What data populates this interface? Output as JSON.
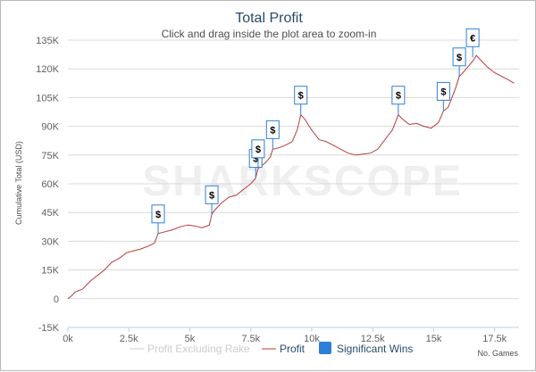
{
  "chart_data": {
    "type": "line",
    "title": "Total Profit",
    "subtitle": "Click and drag inside the plot area to zoom-in",
    "ylabel": "Cumulative Total (USD)",
    "xlabel": "No. Games",
    "xlim": [
      0,
      18500
    ],
    "ylim": [
      -15000,
      135000
    ],
    "x_ticks": [
      0,
      2500,
      5000,
      7500,
      10000,
      12500,
      15000,
      17500
    ],
    "x_tick_labels": [
      "0k",
      "2.5k",
      "5k",
      "7.5k",
      "10k",
      "12.5k",
      "15k",
      "17.5k"
    ],
    "y_ticks": [
      -15000,
      0,
      15000,
      30000,
      45000,
      60000,
      75000,
      90000,
      105000,
      120000,
      135000
    ],
    "y_tick_labels": [
      "-15K",
      "0",
      "15K",
      "30K",
      "45K",
      "60K",
      "75K",
      "90K",
      "105K",
      "120K",
      "135K"
    ],
    "watermark": "SHARKSCOPE",
    "series": [
      {
        "name": "Profit",
        "color": "#b83a3a",
        "x": [
          0,
          150,
          300,
          600,
          900,
          1200,
          1500,
          1800,
          2100,
          2400,
          2700,
          3000,
          3300,
          3550,
          3700,
          4000,
          4300,
          4600,
          4900,
          5200,
          5500,
          5800,
          5900,
          6000,
          6300,
          6600,
          6900,
          7200,
          7500,
          7700,
          7800,
          8100,
          8300,
          8400,
          8700,
          8900,
          9200,
          9400,
          9550,
          9700,
          10000,
          10300,
          10600,
          10900,
          11200,
          11500,
          11800,
          12100,
          12400,
          12700,
          13000,
          13300,
          13550,
          13700,
          14000,
          14300,
          14600,
          14900,
          15200,
          15400,
          15600,
          15900,
          16050,
          16200,
          16400,
          16600,
          16750,
          16900,
          17200,
          17500,
          17800,
          18100,
          18300
        ],
        "values": [
          0,
          1500,
          3500,
          5000,
          9000,
          12000,
          15000,
          19000,
          21000,
          24000,
          25000,
          26000,
          27500,
          29000,
          34000,
          35000,
          36000,
          37500,
          38500,
          38000,
          37000,
          38500,
          44000,
          46000,
          50000,
          53000,
          54000,
          57000,
          60000,
          63000,
          68000,
          71000,
          74000,
          78000,
          79000,
          80000,
          82000,
          88000,
          96000,
          94000,
          88000,
          83000,
          82000,
          80000,
          78000,
          76000,
          75000,
          75500,
          76000,
          78000,
          83000,
          88000,
          96000,
          94000,
          91000,
          91500,
          90000,
          89000,
          92000,
          98000,
          100000,
          110000,
          116000,
          118000,
          121000,
          124000,
          127000,
          125000,
          121000,
          118000,
          116000,
          114000,
          112500
        ]
      }
    ],
    "legend": [
      {
        "label": "Profit Excluding Rake",
        "color": "#cccccc",
        "marker": "line",
        "enabled": false
      },
      {
        "label": "Profit",
        "color": "#b83a3a",
        "marker": "line",
        "enabled": true
      },
      {
        "label": "Significant Wins",
        "color": "#2f7ed8",
        "marker": "square",
        "enabled": true
      }
    ],
    "legend_position": "bottom",
    "flags": [
      {
        "x": 3700,
        "y": 34000,
        "label": "$"
      },
      {
        "x": 5900,
        "y": 44000,
        "label": "$"
      },
      {
        "x": 7700,
        "y": 63000,
        "label": "$"
      },
      {
        "x": 7800,
        "y": 68000,
        "label": "$"
      },
      {
        "x": 8400,
        "y": 78000,
        "label": "$"
      },
      {
        "x": 9550,
        "y": 96000,
        "label": "$"
      },
      {
        "x": 13550,
        "y": 96000,
        "label": "$"
      },
      {
        "x": 15400,
        "y": 98000,
        "label": "$"
      },
      {
        "x": 16050,
        "y": 116000,
        "label": "$"
      },
      {
        "x": 16600,
        "y": 126000,
        "label": "€"
      }
    ],
    "grid": true
  }
}
